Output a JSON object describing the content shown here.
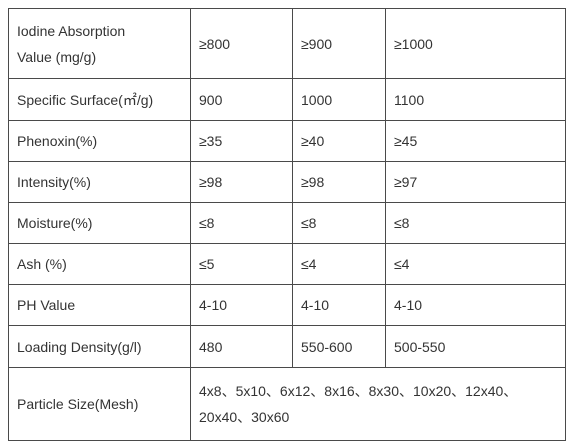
{
  "table": {
    "rows": [
      [
        "Iodine Absorption Value (mg/g)",
        "≥800",
        "≥900",
        "≥1000"
      ],
      [
        "Specific Surface(㎡/g)",
        "900",
        "1000",
        "1100"
      ],
      [
        "Phenoxin(%)",
        "≥35",
        "≥40",
        "≥45"
      ],
      [
        "Intensity(%)",
        "≥98",
        "≥98",
        "≥97"
      ],
      [
        "Moisture(%)",
        "≤8",
        "≤8",
        "≤8"
      ],
      [
        "Ash (%)",
        "≤5",
        "≤4",
        "≤4"
      ],
      [
        "PH Value",
        "4-10",
        "4-10",
        "4-10"
      ],
      [
        "Loading Density(g/l)",
        "480",
        "550-600",
        "500-550"
      ],
      [
        "Particle Size(Mesh)",
        "4x8、5x10、6x12、8x16、8x30、10x20、12x40、20x40、30x60"
      ]
    ]
  }
}
